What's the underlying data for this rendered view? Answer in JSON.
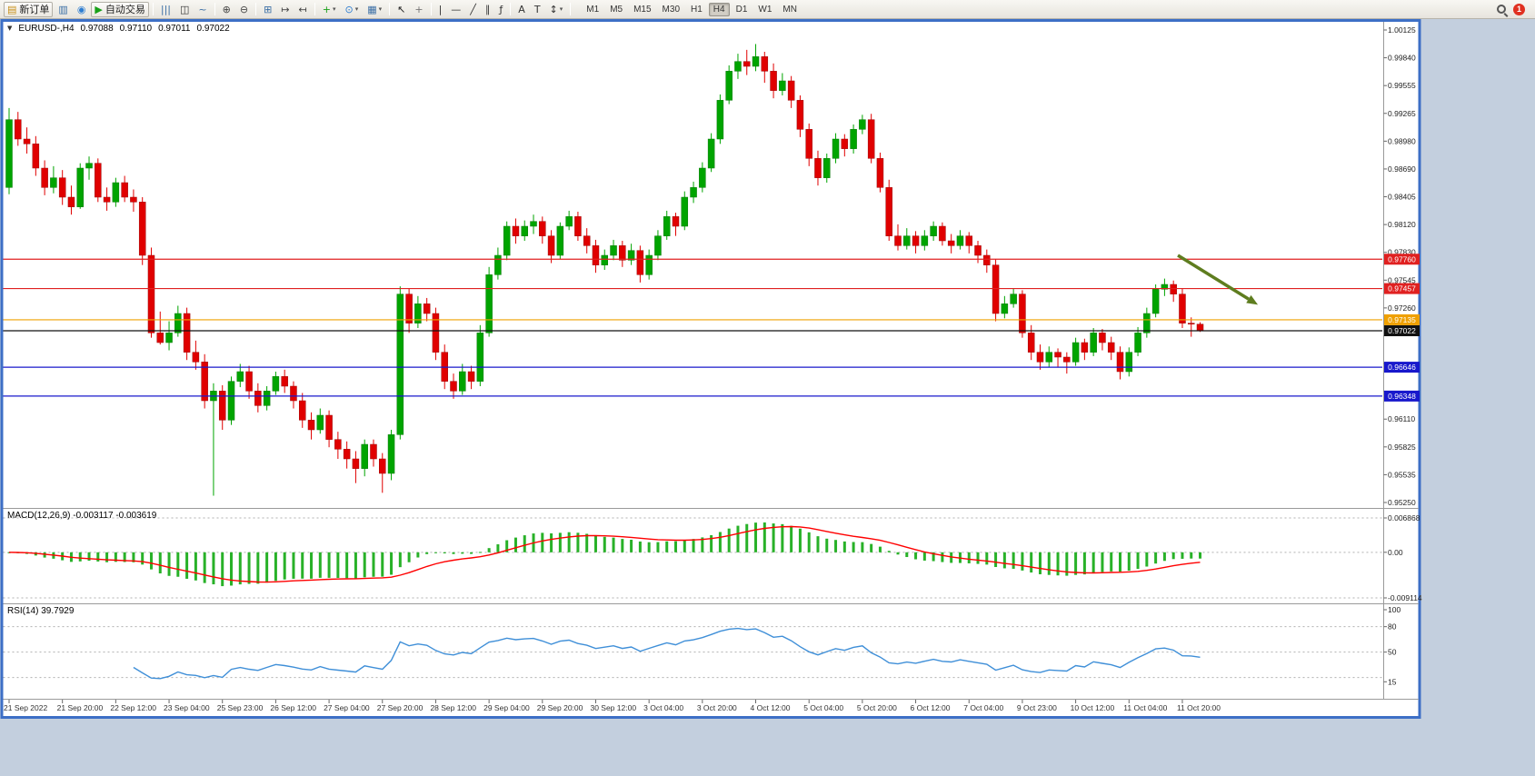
{
  "app": {
    "toolbar": {
      "buttons": [
        {
          "name": "new-order-button",
          "label": "新订单",
          "glyph": "▤",
          "color": "#c89018",
          "kind": "raised"
        },
        {
          "name": "chart-window-button",
          "glyph": "▥",
          "color": "#3a6ea5"
        },
        {
          "name": "market-watch-button",
          "glyph": "◉",
          "color": "#2e7dd1"
        },
        {
          "name": "autotrade-button",
          "label": "自动交易",
          "glyph": "▶",
          "color": "#18a018",
          "kind": "raised"
        },
        {
          "sep": true
        },
        {
          "name": "bar-chart-button",
          "glyph": "|||",
          "color": "#3a6ea5"
        },
        {
          "name": "candlestick-button",
          "glyph": "◫",
          "color": "#333333"
        },
        {
          "name": "line-chart-button",
          "glyph": "~",
          "color": "#3a6ea5"
        },
        {
          "sep": true
        },
        {
          "name": "zoom-in-button",
          "glyph": "⊕",
          "color": "#444444"
        },
        {
          "name": "zoom-out-button",
          "glyph": "⊖",
          "color": "#444444"
        },
        {
          "sep": true
        },
        {
          "name": "tile-windows-button",
          "glyph": "⊞",
          "color": "#3a6ea5"
        },
        {
          "name": "auto-scroll-button",
          "glyph": "↦",
          "color": "#444444"
        },
        {
          "name": "chart-shift-button",
          "glyph": "↤",
          "color": "#444444"
        },
        {
          "sep": true
        },
        {
          "name": "indicators-button",
          "glyph": "+",
          "color": "#18a018",
          "caret": true
        },
        {
          "name": "periods-button",
          "glyph": "⊙",
          "color": "#2e7dd1",
          "caret": true
        },
        {
          "name": "templates-button",
          "glyph": "▦",
          "color": "#3a6ea5",
          "caret": true
        },
        {
          "sep": true
        },
        {
          "name": "cursor-button",
          "glyph": "↖",
          "color": "#222222"
        },
        {
          "name": "crosshair-button",
          "glyph": "+",
          "color": "#777777"
        },
        {
          "sep": true
        },
        {
          "name": "vertical-line-button",
          "glyph": "|",
          "color": "#333333"
        },
        {
          "name": "horizontal-line-button",
          "glyph": "—",
          "color": "#333333"
        },
        {
          "name": "trendline-button",
          "glyph": "╱",
          "color": "#333333"
        },
        {
          "name": "channel-button",
          "glyph": "∥",
          "color": "#333333"
        },
        {
          "name": "fibonacci-button",
          "glyph": "ƒ",
          "color": "#333333"
        },
        {
          "sep": true
        },
        {
          "name": "text-button",
          "glyph": "A",
          "color": "#333333"
        },
        {
          "name": "label-button",
          "glyph": "T",
          "color": "#333333"
        },
        {
          "name": "arrows-button",
          "glyph": "↕",
          "color": "#333333",
          "caret": true
        },
        {
          "sep": true
        }
      ],
      "timeframes": [
        "M1",
        "M5",
        "M15",
        "M30",
        "H1",
        "H4",
        "D1",
        "W1",
        "MN"
      ],
      "active_timeframe": "H4",
      "notification_count": "1"
    },
    "window": {
      "info": {
        "symbol_tf": "EURUSD-,H4",
        "open": "0.97088",
        "high": "0.97110",
        "low": "0.97011",
        "close": "0.97022"
      }
    }
  },
  "chart_data": [
    {
      "type": "candlestick",
      "title": "EURUSD- H4",
      "price_range": {
        "top": 1.00125,
        "bottom": 0.9525
      },
      "y_axis_labels": [
        "1.00125",
        "0.99840",
        "0.99555",
        "0.99265",
        "0.98980",
        "0.98690",
        "0.98405",
        "0.98120",
        "0.97830",
        "0.97545",
        "0.97260",
        "0.96970",
        "0.96685",
        "0.96395",
        "0.96110",
        "0.95825",
        "0.95535",
        "0.95250"
      ],
      "x_axis_labels": [
        "21 Sep 2022",
        "21 Sep 20:00",
        "22 Sep 12:00",
        "23 Sep 04:00",
        "25 Sep 23:00",
        "26 Sep 12:00",
        "27 Sep 04:00",
        "27 Sep 20:00",
        "28 Sep 12:00",
        "29 Sep 04:00",
        "29 Sep 20:00",
        "30 Sep 12:00",
        "3 Oct 04:00",
        "3 Oct 20:00",
        "4 Oct 12:00",
        "5 Oct 04:00",
        "5 Oct 20:00",
        "6 Oct 12:00",
        "7 Oct 04:00",
        "9 Oct 23:00",
        "10 Oct 12:00",
        "11 Oct 04:00",
        "11 Oct 20:00"
      ],
      "label_every_n_bars": 6,
      "up_color": "#00a400",
      "down_color": "#e00000",
      "hlines": [
        {
          "price": 0.9776,
          "label": "0.97760",
          "color": "#e02020"
        },
        {
          "price": 0.97457,
          "label": "0.97457",
          "color": "#e02020"
        },
        {
          "price": 0.97135,
          "label": "0.97135",
          "color": "#efa000"
        },
        {
          "price": 0.97022,
          "label": "0.97022",
          "color": "#111111"
        },
        {
          "price": 0.96646,
          "label": "0.96646",
          "color": "#1818cc"
        },
        {
          "price": 0.96348,
          "label": "0.96348",
          "color": "#1818cc"
        }
      ],
      "current": {
        "open": 0.97088,
        "high": 0.9711,
        "low": 0.97011,
        "close": 0.97022
      },
      "arrow": {
        "from": {
          "bar": 131.5,
          "price": 0.978
        },
        "to": {
          "bar": 140.5,
          "price": 0.9729
        },
        "color": "#5e7d1f"
      },
      "candles": [
        [
          0.985,
          0.9932,
          0.9843,
          0.992
        ],
        [
          0.992,
          0.9928,
          0.9893,
          0.99
        ],
        [
          0.99,
          0.9912,
          0.9885,
          0.9895
        ],
        [
          0.9895,
          0.9903,
          0.9862,
          0.987
        ],
        [
          0.987,
          0.9878,
          0.9842,
          0.985
        ],
        [
          0.985,
          0.9872,
          0.9844,
          0.986
        ],
        [
          0.986,
          0.9868,
          0.9832,
          0.984
        ],
        [
          0.984,
          0.9852,
          0.9822,
          0.983
        ],
        [
          0.983,
          0.9875,
          0.9828,
          0.987
        ],
        [
          0.987,
          0.9882,
          0.9858,
          0.9875
        ],
        [
          0.9875,
          0.988,
          0.9835,
          0.984
        ],
        [
          0.984,
          0.985,
          0.9826,
          0.9835
        ],
        [
          0.9835,
          0.986,
          0.983,
          0.9855
        ],
        [
          0.9855,
          0.9862,
          0.9835,
          0.984
        ],
        [
          0.984,
          0.9848,
          0.9825,
          0.9835
        ],
        [
          0.9835,
          0.984,
          0.977,
          0.978
        ],
        [
          0.978,
          0.9788,
          0.9695,
          0.97
        ],
        [
          0.97,
          0.9722,
          0.9688,
          0.969
        ],
        [
          0.969,
          0.9712,
          0.9682,
          0.97
        ],
        [
          0.97,
          0.9728,
          0.9696,
          0.972
        ],
        [
          0.972,
          0.9726,
          0.9672,
          0.968
        ],
        [
          0.968,
          0.9692,
          0.9662,
          0.967
        ],
        [
          0.967,
          0.9678,
          0.9622,
          0.963
        ],
        [
          0.963,
          0.9648,
          0.9532,
          0.964
        ],
        [
          0.964,
          0.9646,
          0.96,
          0.961
        ],
        [
          0.961,
          0.9655,
          0.9605,
          0.965
        ],
        [
          0.965,
          0.9668,
          0.9644,
          0.966
        ],
        [
          0.966,
          0.9666,
          0.9632,
          0.964
        ],
        [
          0.964,
          0.9648,
          0.9618,
          0.9625
        ],
        [
          0.9625,
          0.9645,
          0.962,
          0.964
        ],
        [
          0.964,
          0.966,
          0.9636,
          0.9655
        ],
        [
          0.9655,
          0.9662,
          0.9638,
          0.9645
        ],
        [
          0.9645,
          0.965,
          0.9622,
          0.963
        ],
        [
          0.963,
          0.9638,
          0.9602,
          0.961
        ],
        [
          0.961,
          0.9618,
          0.959,
          0.96
        ],
        [
          0.96,
          0.9622,
          0.9596,
          0.9615
        ],
        [
          0.9615,
          0.962,
          0.9582,
          0.959
        ],
        [
          0.959,
          0.9598,
          0.957,
          0.958
        ],
        [
          0.958,
          0.9588,
          0.956,
          0.957
        ],
        [
          0.957,
          0.9578,
          0.9545,
          0.956
        ],
        [
          0.956,
          0.959,
          0.9552,
          0.9585
        ],
        [
          0.9585,
          0.959,
          0.9562,
          0.957
        ],
        [
          0.957,
          0.9576,
          0.9535,
          0.9555
        ],
        [
          0.9555,
          0.96,
          0.9548,
          0.9595
        ],
        [
          0.9595,
          0.9748,
          0.959,
          0.974
        ],
        [
          0.974,
          0.9746,
          0.97,
          0.971
        ],
        [
          0.971,
          0.9738,
          0.9705,
          0.973
        ],
        [
          0.973,
          0.9736,
          0.9712,
          0.972
        ],
        [
          0.972,
          0.9726,
          0.9672,
          0.968
        ],
        [
          0.968,
          0.9688,
          0.9642,
          0.965
        ],
        [
          0.965,
          0.9658,
          0.9632,
          0.964
        ],
        [
          0.964,
          0.9668,
          0.9636,
          0.966
        ],
        [
          0.966,
          0.9666,
          0.9642,
          0.965
        ],
        [
          0.965,
          0.9708,
          0.9645,
          0.97
        ],
        [
          0.97,
          0.9768,
          0.9696,
          0.976
        ],
        [
          0.976,
          0.9788,
          0.9755,
          0.978
        ],
        [
          0.978,
          0.9815,
          0.9775,
          0.981
        ],
        [
          0.981,
          0.9818,
          0.9792,
          0.98
        ],
        [
          0.98,
          0.9816,
          0.9795,
          0.981
        ],
        [
          0.981,
          0.9822,
          0.9802,
          0.9815
        ],
        [
          0.9815,
          0.982,
          0.9792,
          0.98
        ],
        [
          0.98,
          0.9806,
          0.9772,
          0.978
        ],
        [
          0.978,
          0.9814,
          0.9776,
          0.981
        ],
        [
          0.981,
          0.9826,
          0.9806,
          0.982
        ],
        [
          0.982,
          0.9825,
          0.9795,
          0.98
        ],
        [
          0.98,
          0.9808,
          0.9782,
          0.979
        ],
        [
          0.979,
          0.9796,
          0.9762,
          0.977
        ],
        [
          0.977,
          0.9786,
          0.9765,
          0.978
        ],
        [
          0.978,
          0.9796,
          0.9775,
          0.979
        ],
        [
          0.979,
          0.9795,
          0.9768,
          0.9775
        ],
        [
          0.9775,
          0.9792,
          0.977,
          0.9785
        ],
        [
          0.9785,
          0.979,
          0.9752,
          0.976
        ],
        [
          0.976,
          0.9786,
          0.9755,
          0.978
        ],
        [
          0.978,
          0.9806,
          0.9775,
          0.98
        ],
        [
          0.98,
          0.9826,
          0.9796,
          0.982
        ],
        [
          0.982,
          0.9824,
          0.98,
          0.981
        ],
        [
          0.981,
          0.9846,
          0.9806,
          0.984
        ],
        [
          0.984,
          0.9856,
          0.9834,
          0.985
        ],
        [
          0.985,
          0.9876,
          0.9845,
          0.987
        ],
        [
          0.987,
          0.9906,
          0.9866,
          0.99
        ],
        [
          0.99,
          0.9946,
          0.9895,
          0.994
        ],
        [
          0.994,
          0.9976,
          0.9936,
          0.997
        ],
        [
          0.997,
          0.9988,
          0.9962,
          0.998
        ],
        [
          0.998,
          0.9992,
          0.9966,
          0.9975
        ],
        [
          0.9975,
          0.9998,
          0.997,
          0.9985
        ],
        [
          0.9985,
          0.999,
          0.9958,
          0.997
        ],
        [
          0.997,
          0.9978,
          0.9942,
          0.995
        ],
        [
          0.995,
          0.9968,
          0.9945,
          0.996
        ],
        [
          0.996,
          0.9965,
          0.9932,
          0.994
        ],
        [
          0.994,
          0.9945,
          0.9902,
          0.991
        ],
        [
          0.991,
          0.9916,
          0.9872,
          0.988
        ],
        [
          0.988,
          0.9888,
          0.9852,
          0.986
        ],
        [
          0.986,
          0.9885,
          0.9855,
          0.988
        ],
        [
          0.988,
          0.9906,
          0.9875,
          0.99
        ],
        [
          0.99,
          0.9905,
          0.9882,
          0.989
        ],
        [
          0.989,
          0.9915,
          0.9885,
          0.991
        ],
        [
          0.991,
          0.9925,
          0.9905,
          0.992
        ],
        [
          0.992,
          0.9926,
          0.9875,
          0.988
        ],
        [
          0.988,
          0.9886,
          0.9845,
          0.985
        ],
        [
          0.985,
          0.9858,
          0.9795,
          0.98
        ],
        [
          0.98,
          0.9812,
          0.9785,
          0.979
        ],
        [
          0.979,
          0.9808,
          0.9786,
          0.98
        ],
        [
          0.98,
          0.9805,
          0.9782,
          0.979
        ],
        [
          0.979,
          0.9806,
          0.9785,
          0.98
        ],
        [
          0.98,
          0.9815,
          0.9795,
          0.981
        ],
        [
          0.981,
          0.9814,
          0.979,
          0.9795
        ],
        [
          0.9795,
          0.9802,
          0.9782,
          0.979
        ],
        [
          0.979,
          0.9806,
          0.9786,
          0.98
        ],
        [
          0.98,
          0.9804,
          0.9782,
          0.979
        ],
        [
          0.979,
          0.9795,
          0.9772,
          0.978
        ],
        [
          0.978,
          0.9786,
          0.9762,
          0.977
        ],
        [
          0.977,
          0.9776,
          0.9712,
          0.972
        ],
        [
          0.972,
          0.9738,
          0.9715,
          0.973
        ],
        [
          0.973,
          0.9746,
          0.9726,
          0.974
        ],
        [
          0.974,
          0.9744,
          0.9695,
          0.97
        ],
        [
          0.97,
          0.9708,
          0.9672,
          0.968
        ],
        [
          0.968,
          0.9688,
          0.9662,
          0.967
        ],
        [
          0.967,
          0.9686,
          0.9665,
          0.968
        ],
        [
          0.968,
          0.9684,
          0.9665,
          0.9675
        ],
        [
          0.9675,
          0.968,
          0.9658,
          0.967
        ],
        [
          0.967,
          0.9695,
          0.9666,
          0.969
        ],
        [
          0.969,
          0.9694,
          0.9672,
          0.968
        ],
        [
          0.968,
          0.9705,
          0.9676,
          0.97
        ],
        [
          0.97,
          0.9704,
          0.9682,
          0.969
        ],
        [
          0.969,
          0.9696,
          0.9672,
          0.968
        ],
        [
          0.968,
          0.9686,
          0.9652,
          0.966
        ],
        [
          0.966,
          0.9685,
          0.9655,
          0.968
        ],
        [
          0.968,
          0.9706,
          0.9676,
          0.97
        ],
        [
          0.97,
          0.9726,
          0.9695,
          0.972
        ],
        [
          0.972,
          0.975,
          0.9716,
          0.9745
        ],
        [
          0.9745,
          0.9756,
          0.9738,
          0.975
        ],
        [
          0.975,
          0.9754,
          0.9732,
          0.974
        ],
        [
          0.974,
          0.9746,
          0.9705,
          0.971
        ],
        [
          0.971,
          0.9716,
          0.9696,
          0.9709
        ],
        [
          0.9709,
          0.9711,
          0.9701,
          0.9702
        ]
      ]
    },
    {
      "type": "bar",
      "name": "MACD",
      "params": [
        12,
        26,
        9
      ],
      "label": "MACD(12,26,9) -0.003117 -0.003619",
      "values_current": [
        -0.003117,
        -0.003619
      ],
      "range": {
        "top": 0.006868,
        "bottom": -0.009114
      },
      "y_axis_labels": [
        "0.006868",
        "0.00",
        "-0.009114"
      ],
      "histogram_color": "#28b128",
      "signal_color": "#ff0000"
    },
    {
      "type": "line",
      "name": "RSI",
      "params": [
        14
      ],
      "label": "RSI(14) 39.7929",
      "value_current": 39.7929,
      "levels": [
        80,
        50,
        20
      ],
      "y_axis_labels": [
        {
          "value": 100,
          "label": "100"
        },
        {
          "value": 80,
          "label": "80"
        },
        {
          "value": 50,
          "label": "50"
        },
        {
          "value": 15,
          "label": "15"
        }
      ],
      "line_color": "#3f8fd8"
    }
  ]
}
